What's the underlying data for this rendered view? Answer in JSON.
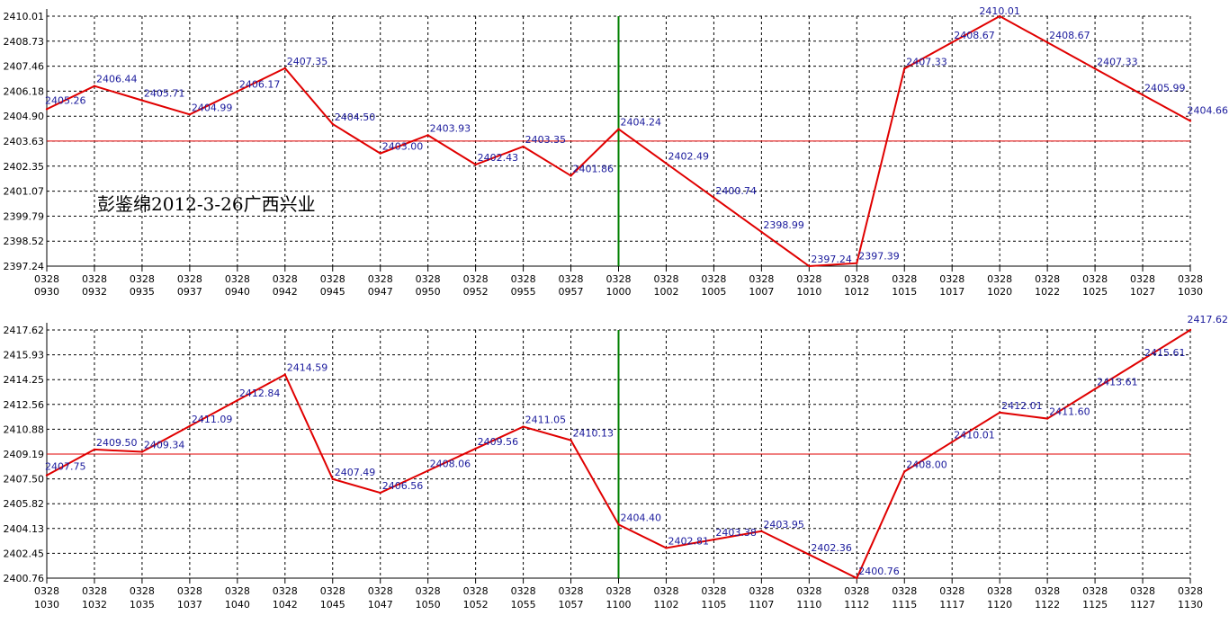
{
  "annotation": "彭鉴绵2012-3-26广西兴业",
  "colors": {
    "series": "#e00000",
    "reference": "#e00000",
    "marker": "#008000",
    "labels": "#1a1a9c",
    "grid": "#000000"
  },
  "chart_data": [
    {
      "type": "line",
      "grid": true,
      "ylim": [
        2397.24,
        2410.01
      ],
      "y_ticks": [
        "2410.01",
        "2408.73",
        "2407.46",
        "2406.18",
        "2404.90",
        "2403.63",
        "2402.35",
        "2401.07",
        "2399.79",
        "2398.52",
        "2397.24"
      ],
      "x_ticks": [
        [
          "0328",
          "0930"
        ],
        [
          "0328",
          "0932"
        ],
        [
          "0328",
          "0935"
        ],
        [
          "0328",
          "0937"
        ],
        [
          "0328",
          "0940"
        ],
        [
          "0328",
          "0942"
        ],
        [
          "0328",
          "0945"
        ],
        [
          "0328",
          "0947"
        ],
        [
          "0328",
          "0950"
        ],
        [
          "0328",
          "0952"
        ],
        [
          "0328",
          "0955"
        ],
        [
          "0328",
          "0957"
        ],
        [
          "0328",
          "1000"
        ],
        [
          "0328",
          "1002"
        ],
        [
          "0328",
          "1005"
        ],
        [
          "0328",
          "1007"
        ],
        [
          "0328",
          "1010"
        ],
        [
          "0328",
          "1012"
        ],
        [
          "0328",
          "1015"
        ],
        [
          "0328",
          "1017"
        ],
        [
          "0328",
          "1020"
        ],
        [
          "0328",
          "1022"
        ],
        [
          "0328",
          "1025"
        ],
        [
          "0328",
          "1027"
        ],
        [
          "0328",
          "1030"
        ]
      ],
      "values": [
        2405.26,
        2406.44,
        2405.71,
        2404.99,
        2406.17,
        2407.35,
        2404.5,
        2403.0,
        2403.93,
        2402.43,
        2403.35,
        2401.86,
        2404.24,
        2402.49,
        2400.74,
        2398.99,
        2397.24,
        2397.39,
        2407.33,
        2408.67,
        2410.01,
        2408.67,
        2407.33,
        2405.99,
        2404.66
      ],
      "labels": [
        "2405.26",
        "2406.44",
        "2405.71",
        "2404.99",
        "2406.17",
        "2407.35",
        "2404.50",
        "2403.00",
        "2403.93",
        "2402.43",
        "2403.35",
        "2401.86",
        "2404.24",
        "2402.49",
        "2400.74",
        "2398.99",
        "2397.24",
        "2397.39",
        "2407.33",
        "2408.67",
        "2410.01",
        "2408.67",
        "2407.33",
        "2405.99",
        "2404.66"
      ],
      "reference_y": 2403.63,
      "marker_index": 12
    },
    {
      "type": "line",
      "grid": true,
      "ylim": [
        2400.76,
        2417.62
      ],
      "y_ticks": [
        "2417.62",
        "2415.93",
        "2414.25",
        "2412.56",
        "2410.88",
        "2409.19",
        "2407.50",
        "2405.82",
        "2404.13",
        "2402.45",
        "2400.76"
      ],
      "x_ticks": [
        [
          "0328",
          "1030"
        ],
        [
          "0328",
          "1032"
        ],
        [
          "0328",
          "1035"
        ],
        [
          "0328",
          "1037"
        ],
        [
          "0328",
          "1040"
        ],
        [
          "0328",
          "1042"
        ],
        [
          "0328",
          "1045"
        ],
        [
          "0328",
          "1047"
        ],
        [
          "0328",
          "1050"
        ],
        [
          "0328",
          "1052"
        ],
        [
          "0328",
          "1055"
        ],
        [
          "0328",
          "1057"
        ],
        [
          "0328",
          "1100"
        ],
        [
          "0328",
          "1102"
        ],
        [
          "0328",
          "1105"
        ],
        [
          "0328",
          "1107"
        ],
        [
          "0328",
          "1110"
        ],
        [
          "0328",
          "1112"
        ],
        [
          "0328",
          "1115"
        ],
        [
          "0328",
          "1117"
        ],
        [
          "0328",
          "1120"
        ],
        [
          "0328",
          "1122"
        ],
        [
          "0328",
          "1125"
        ],
        [
          "0328",
          "1127"
        ],
        [
          "0328",
          "1130"
        ]
      ],
      "values": [
        2407.75,
        2409.5,
        2409.34,
        2411.09,
        2412.84,
        2414.59,
        2407.49,
        2406.56,
        2408.06,
        2409.56,
        2411.05,
        2410.13,
        2404.4,
        2402.81,
        2403.38,
        2403.95,
        2402.36,
        2400.76,
        2408.0,
        2410.01,
        2412.01,
        2411.6,
        2413.61,
        2415.61,
        2417.62
      ],
      "labels": [
        "2407.75",
        "2409.50",
        "2409.34",
        "2411.09",
        "2412.84",
        "2414.59",
        "2407.49",
        "2406.56",
        "2408.06",
        "2409.56",
        "2411.05",
        "2410.13",
        "2404.40",
        "2402.81",
        "2403.38",
        "2403.95",
        "2402.36",
        "2400.76",
        "2408.00",
        "2410.01",
        "2412.01",
        "2411.60",
        "2413.61",
        "2415.61",
        "2417.62"
      ],
      "reference_y": 2409.19,
      "marker_index": 12
    }
  ]
}
